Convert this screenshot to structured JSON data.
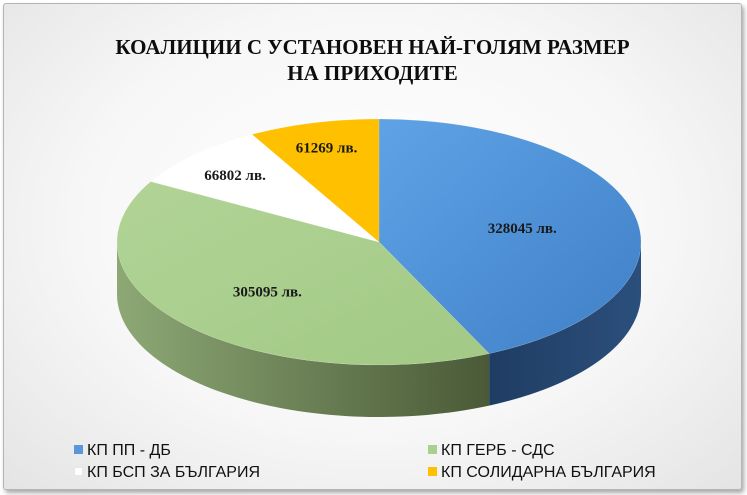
{
  "chart_data": {
    "type": "pie",
    "title_line1": "КОАЛИЦИИ С УСТАНОВЕН НАЙ-ГОЛЯМ РАЗМЕР",
    "title_line2": "НА ПРИХОДИТЕ",
    "legend_position": "bottom",
    "slices": [
      {
        "name": "КП ПП - ДБ",
        "value": 328045,
        "label": "328045 лв.",
        "color": "#5a96d8",
        "side": "#28466b"
      },
      {
        "name": "КП ГЕРБ - СДС",
        "value": 305095,
        "label": "305095 лв.",
        "color": "#a9d08e",
        "side": "#6f8a4f"
      },
      {
        "name": "КП БСП ЗА БЪЛГАРИЯ",
        "value": 66802,
        "label": "66802 лв.",
        "color": "#ffffff",
        "side": "#c9c9c9"
      },
      {
        "name": "КП СОЛИДАРНА БЪЛГАРИЯ",
        "value": 61269,
        "label": "61269 лв.",
        "color": "#ffc000",
        "side": "#b08400"
      }
    ]
  }
}
